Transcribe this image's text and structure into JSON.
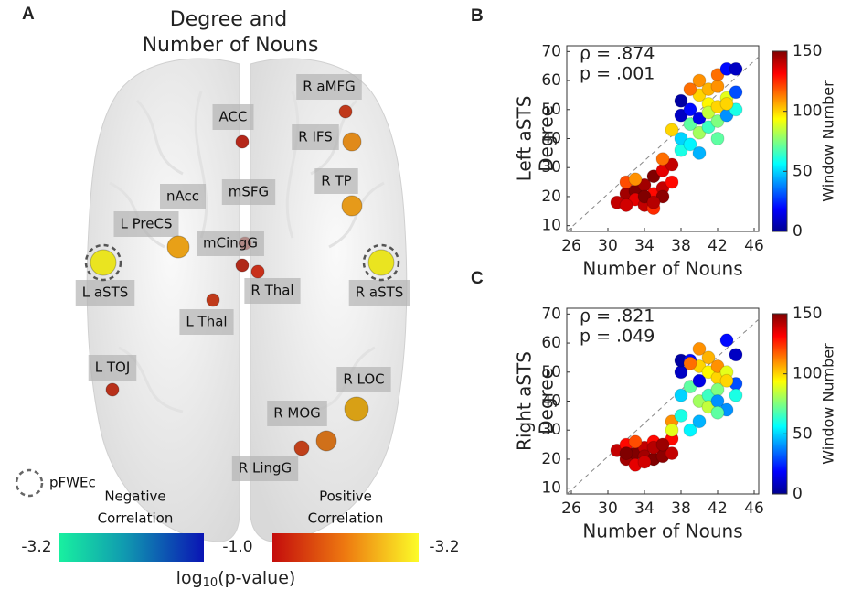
{
  "panel_a": {
    "label": "A",
    "title": [
      "Degree and",
      "Number of Nouns"
    ],
    "regions": [
      "R aMFG",
      "ACC",
      "R IFS",
      "R TP",
      "mSFG",
      "nAcc",
      "mCingG",
      "L PreCS",
      "L aSTS",
      "R aSTS",
      "R Thal",
      "L Thal",
      "L TOJ",
      "R LOC",
      "R MOG",
      "R LingG"
    ],
    "threshold_legend": "pFWEc",
    "negative_label": [
      "Negative",
      "Correlation"
    ],
    "positive_label": [
      "Positive",
      "Correlation"
    ],
    "colorbar_ticks": [
      "-3.2",
      "-1.0",
      "-3.2"
    ],
    "colorbar_label": {
      "base": "log",
      "sub": "10",
      "rest": "(p-value)"
    }
  },
  "chart_data": [
    {
      "type": "scatter",
      "panel": "B",
      "annotation": [
        "ρ = .874",
        "p = .001"
      ],
      "xlabel": "Number of Nouns",
      "ylabel": [
        "Left aSTS",
        "Degree"
      ],
      "xlim": [
        25.5,
        46.5
      ],
      "xticks": [
        26,
        30,
        34,
        38,
        42,
        46
      ],
      "ylim": [
        8,
        72
      ],
      "yticks": [
        10,
        20,
        30,
        40,
        50,
        60,
        70
      ],
      "diagonal": true,
      "colorbar": {
        "label": "Window Number",
        "lim": [
          0,
          150
        ],
        "ticks": [
          0,
          50,
          100,
          150
        ],
        "colormap": "jet"
      },
      "x": [
        31,
        32,
        32,
        33,
        33,
        34,
        34,
        35,
        35,
        35,
        36,
        36,
        36,
        37,
        37,
        34,
        33,
        36,
        35,
        32,
        38,
        38,
        38,
        38,
        39,
        39,
        39,
        40,
        40,
        40,
        40,
        41,
        41,
        41,
        41,
        42,
        42,
        42,
        42,
        43,
        43,
        43,
        44,
        44,
        44,
        39,
        42,
        37,
        40,
        43
      ],
      "y": [
        18,
        21,
        25,
        22,
        19,
        17,
        24,
        21,
        27,
        16,
        23,
        29,
        20,
        25,
        31,
        20,
        26,
        33,
        18,
        17,
        36,
        40,
        48,
        53,
        45,
        50,
        38,
        42,
        55,
        60,
        47,
        52,
        44,
        57,
        49,
        51,
        46,
        58,
        62,
        54,
        48,
        64,
        56,
        50,
        64,
        57,
        40,
        43,
        35,
        52
      ],
      "window": [
        140,
        145,
        120,
        150,
        135,
        140,
        145,
        130,
        150,
        125,
        140,
        135,
        148,
        130,
        140,
        150,
        110,
        115,
        142,
        138,
        60,
        50,
        10,
        5,
        70,
        20,
        55,
        80,
        100,
        110,
        15,
        95,
        65,
        105,
        85,
        100,
        75,
        110,
        115,
        90,
        40,
        20,
        30,
        60,
        10,
        115,
        70,
        100,
        45,
        100
      ]
    },
    {
      "type": "scatter",
      "panel": "C",
      "annotation": [
        "ρ = .821",
        "p = .049"
      ],
      "xlabel": "Number of Nouns",
      "ylabel": [
        "Right aSTS",
        "Degree"
      ],
      "xlim": [
        25.5,
        46.5
      ],
      "xticks": [
        26,
        30,
        34,
        38,
        42,
        46
      ],
      "ylim": [
        8,
        72
      ],
      "yticks": [
        10,
        20,
        30,
        40,
        50,
        60,
        70
      ],
      "diagonal": true,
      "colorbar": {
        "label": "Window Number",
        "lim": [
          0,
          150
        ],
        "ticks": [
          0,
          50,
          100,
          150
        ],
        "colormap": "jet"
      },
      "x": [
        31,
        32,
        32,
        33,
        33,
        34,
        34,
        35,
        35,
        36,
        36,
        36,
        37,
        37,
        33,
        34,
        35,
        37,
        32,
        36,
        38,
        38,
        38,
        38,
        39,
        39,
        39,
        40,
        40,
        40,
        40,
        41,
        41,
        41,
        41,
        42,
        42,
        42,
        42,
        43,
        43,
        43,
        44,
        44,
        44,
        39,
        37,
        40,
        43,
        42
      ],
      "y": [
        23,
        20,
        25,
        22,
        18,
        24,
        21,
        26,
        20,
        23,
        25,
        21,
        27,
        22,
        26,
        19,
        24,
        33,
        22,
        25,
        35,
        42,
        50,
        54,
        45,
        54,
        30,
        40,
        52,
        58,
        47,
        50,
        42,
        55,
        38,
        48,
        44,
        52,
        40,
        50,
        37,
        61,
        46,
        42,
        56,
        53,
        30,
        33,
        47,
        36
      ],
      "window": [
        140,
        145,
        130,
        150,
        135,
        140,
        145,
        130,
        150,
        140,
        135,
        148,
        130,
        140,
        120,
        138,
        142,
        110,
        150,
        146,
        60,
        50,
        10,
        5,
        70,
        20,
        55,
        80,
        100,
        110,
        15,
        95,
        65,
        105,
        85,
        100,
        75,
        110,
        40,
        90,
        40,
        20,
        30,
        60,
        10,
        115,
        90,
        45,
        100,
        70
      ]
    }
  ]
}
